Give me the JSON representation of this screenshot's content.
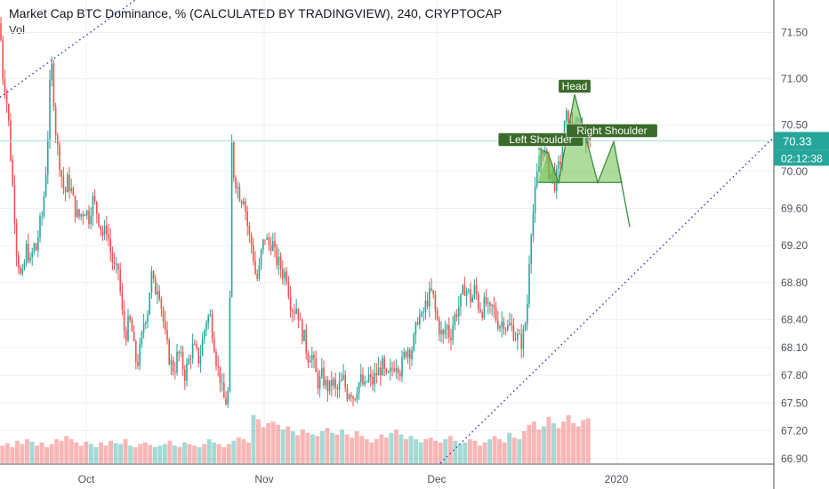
{
  "header": {
    "title": "Market Cap BTC Dominance, % (CALCULATED BY TRADINGVIEW), 240, CRYPTOCAP",
    "volume_label": "Vol"
  },
  "chart_data": {
    "type": "candlestick",
    "y_axis": {
      "position": "right",
      "ticks": [
        "71.50",
        "71.00",
        "70.50",
        "70.00",
        "69.60",
        "69.20",
        "68.80",
        "68.40",
        "68.10",
        "67.80",
        "67.50",
        "67.20",
        "66.90"
      ],
      "ylim": [
        66.85,
        71.85
      ]
    },
    "x_axis": {
      "ticks": [
        "Oct",
        "Nov",
        "Dec",
        "2020"
      ]
    },
    "last_price": {
      "value": "70.33",
      "countdown": "02:12:38"
    },
    "price_path": [
      [
        0,
        71.6
      ],
      [
        3,
        71.05
      ],
      [
        6,
        70.9
      ],
      [
        10,
        70.5
      ],
      [
        13,
        70.0
      ],
      [
        16,
        69.6
      ],
      [
        18,
        69.2
      ],
      [
        21,
        69.0
      ],
      [
        24,
        68.8
      ],
      [
        26,
        68.9
      ],
      [
        30,
        69.2
      ],
      [
        34,
        69.0
      ],
      [
        38,
        69.2
      ],
      [
        41,
        69.15
      ],
      [
        44,
        69.4
      ],
      [
        47,
        69.5
      ],
      [
        50,
        69.8
      ],
      [
        53,
        70.2
      ],
      [
        56,
        70.9
      ],
      [
        59,
        71.2
      ],
      [
        61,
        70.6
      ],
      [
        64,
        70.3
      ],
      [
        67,
        70.1
      ],
      [
        70,
        69.9
      ],
      [
        73,
        69.75
      ],
      [
        76,
        69.9
      ],
      [
        80,
        69.8
      ],
      [
        84,
        69.6
      ],
      [
        88,
        69.5
      ],
      [
        92,
        69.55
      ],
      [
        96,
        69.6
      ],
      [
        100,
        69.5
      ],
      [
        104,
        69.7
      ],
      [
        108,
        69.6
      ],
      [
        112,
        69.45
      ],
      [
        116,
        69.3
      ],
      [
        120,
        69.4
      ],
      [
        124,
        69.15
      ],
      [
        127,
        69.0
      ],
      [
        130,
        68.9
      ],
      [
        133,
        68.95
      ],
      [
        136,
        68.6
      ],
      [
        139,
        68.3
      ],
      [
        142,
        68.25
      ],
      [
        145,
        68.4
      ],
      [
        148,
        68.3
      ],
      [
        151,
        68.05
      ],
      [
        154,
        67.9
      ],
      [
        158,
        68.1
      ],
      [
        162,
        68.4
      ],
      [
        166,
        68.5
      ],
      [
        170,
        68.9
      ],
      [
        174,
        68.7
      ],
      [
        178,
        68.8
      ],
      [
        182,
        68.5
      ],
      [
        186,
        68.2
      ],
      [
        190,
        68.0
      ],
      [
        193,
        67.9
      ],
      [
        196,
        67.85
      ],
      [
        200,
        68.05
      ],
      [
        204,
        67.95
      ],
      [
        208,
        67.8
      ],
      [
        212,
        67.95
      ],
      [
        216,
        68.1
      ],
      [
        220,
        68.05
      ],
      [
        224,
        67.95
      ],
      [
        228,
        68.2
      ],
      [
        232,
        68.4
      ],
      [
        236,
        68.45
      ],
      [
        240,
        68.2
      ],
      [
        244,
        67.9
      ],
      [
        247,
        67.8
      ],
      [
        250,
        67.6
      ],
      [
        253,
        67.5
      ],
      [
        256,
        67.55
      ],
      [
        258,
        68.1
      ],
      [
        260,
        70.4
      ],
      [
        262,
        70.0
      ],
      [
        265,
        69.9
      ],
      [
        268,
        69.8
      ],
      [
        271,
        69.7
      ],
      [
        274,
        69.75
      ],
      [
        277,
        69.5
      ],
      [
        280,
        69.3
      ],
      [
        283,
        69.2
      ],
      [
        286,
        69.0
      ],
      [
        288,
        68.8
      ],
      [
        291,
        68.9
      ],
      [
        294,
        69.15
      ],
      [
        298,
        69.3
      ],
      [
        302,
        69.2
      ],
      [
        306,
        69.25
      ],
      [
        310,
        69.05
      ],
      [
        314,
        69.0
      ],
      [
        318,
        68.9
      ],
      [
        322,
        68.9
      ],
      [
        326,
        68.6
      ],
      [
        330,
        68.5
      ],
      [
        334,
        68.55
      ],
      [
        338,
        68.3
      ],
      [
        342,
        68.2
      ],
      [
        346,
        68.0
      ],
      [
        350,
        68.05
      ],
      [
        354,
        67.85
      ],
      [
        358,
        67.7
      ],
      [
        362,
        67.8
      ],
      [
        366,
        67.7
      ],
      [
        370,
        67.65
      ],
      [
        374,
        67.75
      ],
      [
        378,
        67.6
      ],
      [
        382,
        67.7
      ],
      [
        386,
        67.75
      ],
      [
        390,
        67.6
      ],
      [
        394,
        67.65
      ],
      [
        398,
        67.55
      ],
      [
        402,
        67.7
      ],
      [
        406,
        67.75
      ],
      [
        410,
        67.65
      ],
      [
        414,
        67.8
      ],
      [
        418,
        67.7
      ],
      [
        422,
        67.8
      ],
      [
        426,
        67.85
      ],
      [
        430,
        67.9
      ],
      [
        434,
        67.75
      ],
      [
        438,
        67.8
      ],
      [
        442,
        67.9
      ],
      [
        446,
        67.95
      ],
      [
        450,
        67.85
      ],
      [
        454,
        68.0
      ],
      [
        458,
        68.1
      ],
      [
        462,
        68.05
      ],
      [
        466,
        68.2
      ],
      [
        470,
        68.45
      ],
      [
        474,
        68.4
      ],
      [
        478,
        68.55
      ],
      [
        482,
        68.65
      ],
      [
        486,
        68.7
      ],
      [
        490,
        68.45
      ],
      [
        494,
        68.3
      ],
      [
        498,
        68.2
      ],
      [
        502,
        68.35
      ],
      [
        506,
        68.2
      ],
      [
        510,
        68.4
      ],
      [
        514,
        68.5
      ],
      [
        518,
        68.6
      ],
      [
        522,
        68.75
      ],
      [
        526,
        68.7
      ],
      [
        530,
        68.6
      ],
      [
        534,
        68.75
      ],
      [
        538,
        68.55
      ],
      [
        542,
        68.5
      ],
      [
        546,
        68.6
      ],
      [
        550,
        68.45
      ],
      [
        554,
        68.55
      ],
      [
        558,
        68.4
      ],
      [
        562,
        68.35
      ],
      [
        566,
        68.4
      ],
      [
        570,
        68.3
      ],
      [
        574,
        68.35
      ],
      [
        578,
        68.25
      ],
      [
        582,
        68.2
      ],
      [
        586,
        68.15
      ],
      [
        590,
        68.3
      ],
      [
        593,
        68.6
      ],
      [
        596,
        69.3
      ],
      [
        600,
        69.6
      ],
      [
        603,
        69.9
      ],
      [
        606,
        70.05
      ],
      [
        609,
        70.3
      ],
      [
        612,
        70.2
      ],
      [
        615,
        70.1
      ],
      [
        618,
        69.95
      ],
      [
        621,
        70.0
      ],
      [
        624,
        69.85
      ],
      [
        627,
        70.0
      ],
      [
        630,
        70.1
      ],
      [
        633,
        70.35
      ],
      [
        636,
        70.6
      ],
      [
        640,
        70.5
      ],
      [
        644,
        70.45
      ],
      [
        648,
        70.4
      ],
      [
        652,
        70.5
      ],
      [
        656,
        70.45
      ],
      [
        660,
        70.35
      ],
      [
        664,
        70.33
      ]
    ],
    "volume_levels": [
      0.22,
      0.25,
      0.2,
      0.28,
      0.24,
      0.3,
      0.27,
      0.22,
      0.26,
      0.2,
      0.24,
      0.3,
      0.28,
      0.34,
      0.3,
      0.26,
      0.22,
      0.27,
      0.24,
      0.2,
      0.26,
      0.22,
      0.28,
      0.25,
      0.24,
      0.3,
      0.22,
      0.2,
      0.24,
      0.26,
      0.23,
      0.2,
      0.22,
      0.24,
      0.28,
      0.22,
      0.2,
      0.26,
      0.24,
      0.22,
      0.2,
      0.24,
      0.3,
      0.26,
      0.24,
      0.2,
      0.24,
      0.28,
      0.32,
      0.3,
      0.26,
      0.6,
      0.55,
      0.45,
      0.5,
      0.52,
      0.48,
      0.42,
      0.46,
      0.4,
      0.35,
      0.42,
      0.38,
      0.36,
      0.34,
      0.4,
      0.44,
      0.38,
      0.36,
      0.42,
      0.36,
      0.32,
      0.4,
      0.34,
      0.3,
      0.26,
      0.3,
      0.36,
      0.32,
      0.38,
      0.42,
      0.36,
      0.3,
      0.34,
      0.3,
      0.26,
      0.3,
      0.32,
      0.28,
      0.26,
      0.3,
      0.34,
      0.28,
      0.24,
      0.26,
      0.3,
      0.28,
      0.22,
      0.26,
      0.3,
      0.34,
      0.3,
      0.26,
      0.38,
      0.32,
      0.3,
      0.4,
      0.48,
      0.52,
      0.42,
      0.46,
      0.58,
      0.5,
      0.44,
      0.52,
      0.6,
      0.5,
      0.46,
      0.54,
      0.56
    ],
    "annotations": [
      {
        "type": "label",
        "text": "Head",
        "x": 646,
        "y": 70.9
      },
      {
        "type": "label",
        "text": "Left Shoulder",
        "x": 608,
        "y": 70.33
      },
      {
        "type": "label",
        "text": "Right Shoulder",
        "x": 688,
        "y": 70.45
      },
      {
        "type": "trendline",
        "style": "dotted",
        "points": [
          [
            0,
            70.8
          ],
          [
            152,
            71.85
          ]
        ]
      },
      {
        "type": "trendline",
        "style": "dotted",
        "points": [
          [
            495,
            66.85
          ],
          [
            870,
            70.37
          ]
        ]
      },
      {
        "type": "horizontal_line",
        "y": 70.33
      }
    ],
    "pattern_projection": [
      [
        605,
        70.25
      ],
      [
        616,
        70.2
      ],
      [
        628,
        69.88
      ],
      [
        646,
        70.83
      ],
      [
        672,
        69.88
      ],
      [
        690,
        70.32
      ],
      [
        708,
        69.4
      ]
    ],
    "colors": {
      "up": "#26a69a",
      "down": "#ef5350",
      "pattern_fill": "#6abf4b",
      "pattern_stroke": "#388e3c",
      "label_bg": "#3a6b2a",
      "trendline": "#3f3fbf",
      "last_price_bg": "#26a69a"
    }
  }
}
